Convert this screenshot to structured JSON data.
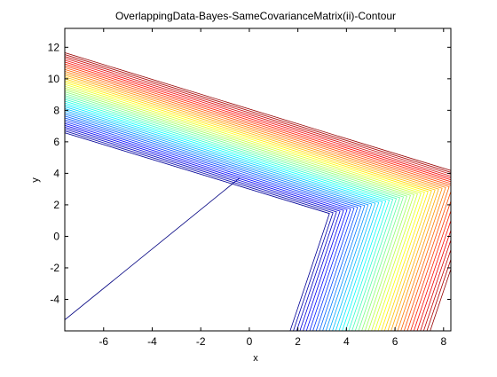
{
  "chart_data": {
    "type": "contour",
    "title": "OverlappingData-Bayes-SameCovarianceMatrix(ii)-Contour",
    "xlabel": "x",
    "ylabel": "y",
    "xlim": [
      -7.6,
      8.3
    ],
    "ylim": [
      -6.0,
      13.2
    ],
    "xticks": [
      -6,
      -4,
      -2,
      0,
      2,
      4,
      6,
      8
    ],
    "yticks": [
      -4,
      -2,
      0,
      2,
      4,
      6,
      8,
      10,
      12
    ],
    "grid": false,
    "legend": "none",
    "colormap": "jet",
    "contour_model": {
      "description_free_params_only": true,
      "vertex": [
        -0.4,
        3.7
      ],
      "dir_left": [
        -7.2,
        5.6
      ],
      "dir_down": [
        1.4,
        -9.6
      ],
      "vertex_shift": [
        0.115,
        -0.078
      ],
      "left_offset": [
        -0.05,
        0.0825
      ],
      "down_offset": [
        0.17,
        0.0
      ],
      "levels": 44
    },
    "inner_branch": {
      "start": [
        -0.4,
        3.7
      ],
      "end": [
        -7.6,
        -5.3
      ]
    }
  }
}
